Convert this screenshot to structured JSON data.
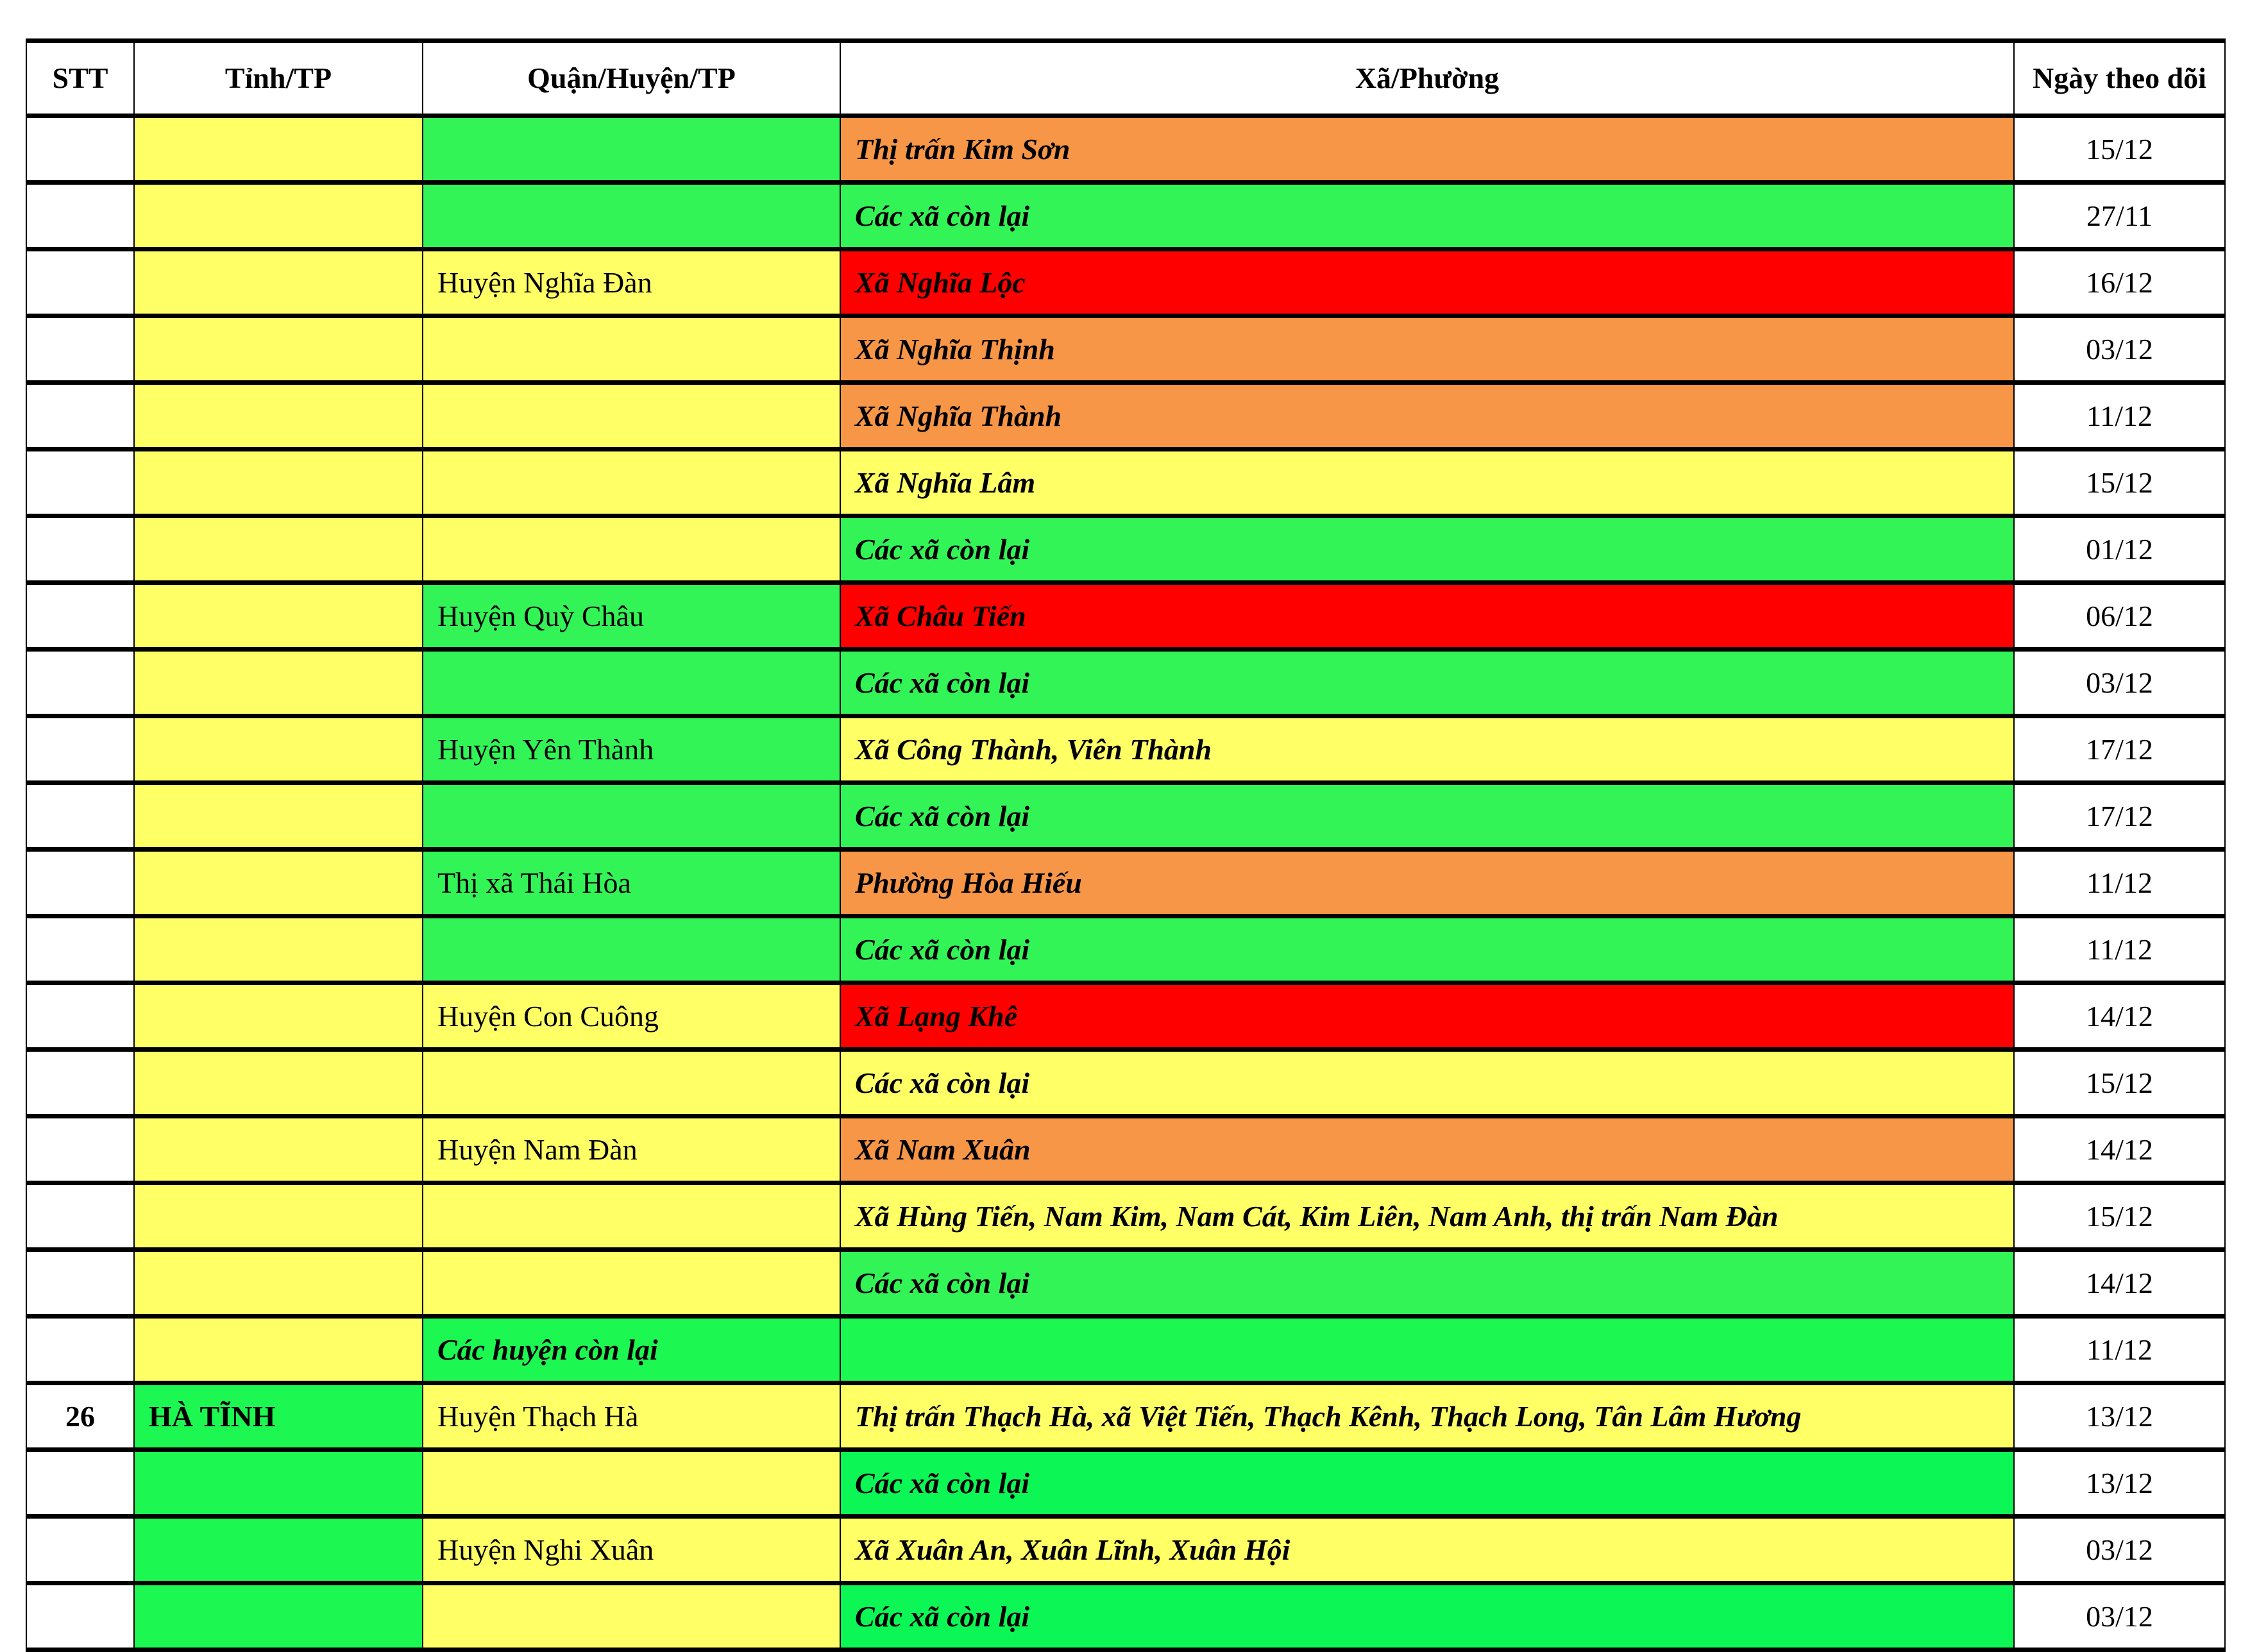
{
  "colors": {
    "yellow": "#FFFF66",
    "green": "#33F457",
    "green2": "#1CF752",
    "green3": "#0CF755",
    "orange": "#F79646",
    "red": "#FF0000",
    "white": "#FFFFFF"
  },
  "headers": {
    "stt": "STT",
    "tinh": "Tỉnh/TP",
    "quan": "Quận/Huyện/TP",
    "xa": "Xã/Phường",
    "ngay": "Ngày theo dõi"
  },
  "rows": [
    {
      "stt": "",
      "tinh": "",
      "tinh_color": "yellow",
      "quan": "",
      "quan_color": "green",
      "xa": "Thị trấn Kim Sơn",
      "xa_color": "orange",
      "ngay": "15/12"
    },
    {
      "stt": "",
      "tinh": "",
      "tinh_color": "yellow",
      "quan": "",
      "quan_color": "green",
      "xa": "Các xã còn lại",
      "xa_color": "green",
      "ngay": "27/11"
    },
    {
      "stt": "",
      "tinh": "",
      "tinh_color": "yellow",
      "quan": "Huyện Nghĩa Đàn",
      "quan_color": "yellow",
      "xa": "Xã Nghĩa Lộc",
      "xa_color": "red",
      "ngay": "16/12"
    },
    {
      "stt": "",
      "tinh": "",
      "tinh_color": "yellow",
      "quan": "",
      "quan_color": "yellow",
      "xa": "Xã Nghĩa Thịnh",
      "xa_color": "orange",
      "ngay": "03/12"
    },
    {
      "stt": "",
      "tinh": "",
      "tinh_color": "yellow",
      "quan": "",
      "quan_color": "yellow",
      "xa": "Xã Nghĩa Thành",
      "xa_color": "orange",
      "ngay": "11/12"
    },
    {
      "stt": "",
      "tinh": "",
      "tinh_color": "yellow",
      "quan": "",
      "quan_color": "yellow",
      "xa": "Xã Nghĩa Lâm",
      "xa_color": "yellow",
      "ngay": "15/12"
    },
    {
      "stt": "",
      "tinh": "",
      "tinh_color": "yellow",
      "quan": "",
      "quan_color": "yellow",
      "xa": "Các xã còn lại",
      "xa_color": "green",
      "ngay": "01/12"
    },
    {
      "stt": "",
      "tinh": "",
      "tinh_color": "yellow",
      "quan": "Huyện Quỳ Châu",
      "quan_color": "green",
      "xa": "Xã Châu Tiến",
      "xa_color": "red",
      "ngay": "06/12"
    },
    {
      "stt": "",
      "tinh": "",
      "tinh_color": "yellow",
      "quan": "",
      "quan_color": "green",
      "xa": "Các xã còn lại",
      "xa_color": "green",
      "ngay": "03/12"
    },
    {
      "stt": "",
      "tinh": "",
      "tinh_color": "yellow",
      "quan": "Huyện Yên Thành",
      "quan_color": "green",
      "xa": "Xã Công Thành, Viên Thành",
      "xa_color": "yellow",
      "ngay": "17/12"
    },
    {
      "stt": "",
      "tinh": "",
      "tinh_color": "yellow",
      "quan": "",
      "quan_color": "green",
      "xa": "Các xã còn lại",
      "xa_color": "green",
      "ngay": "17/12"
    },
    {
      "stt": "",
      "tinh": "",
      "tinh_color": "yellow",
      "quan": "Thị xã Thái Hòa",
      "quan_color": "green",
      "xa": "Phường Hòa Hiếu",
      "xa_color": "orange",
      "ngay": "11/12"
    },
    {
      "stt": "",
      "tinh": "",
      "tinh_color": "yellow",
      "quan": "",
      "quan_color": "green",
      "xa": "Các xã còn lại",
      "xa_color": "green",
      "ngay": "11/12"
    },
    {
      "stt": "",
      "tinh": "",
      "tinh_color": "yellow",
      "quan": "Huyện Con Cuông",
      "quan_color": "yellow",
      "xa": "Xã Lạng Khê",
      "xa_color": "red",
      "ngay": "14/12"
    },
    {
      "stt": "",
      "tinh": "",
      "tinh_color": "yellow",
      "quan": "",
      "quan_color": "yellow",
      "xa": "Các xã còn lại",
      "xa_color": "yellow",
      "ngay": "15/12"
    },
    {
      "stt": "",
      "tinh": "",
      "tinh_color": "yellow",
      "quan": "Huyện Nam Đàn",
      "quan_color": "yellow",
      "xa": "Xã Nam Xuân",
      "xa_color": "orange",
      "ngay": "14/12"
    },
    {
      "stt": "",
      "tinh": "",
      "tinh_color": "yellow",
      "quan": "",
      "quan_color": "yellow",
      "xa": "Xã Hùng Tiến, Nam Kim, Nam Cát, Kim Liên, Nam Anh, thị trấn Nam Đàn",
      "xa_color": "yellow",
      "ngay": "15/12"
    },
    {
      "stt": "",
      "tinh": "",
      "tinh_color": "yellow",
      "quan": "",
      "quan_color": "yellow",
      "xa": "Các xã còn lại",
      "xa_color": "green",
      "ngay": "14/12"
    },
    {
      "stt": "",
      "tinh": "",
      "tinh_color": "yellow",
      "quan": "Các huyện còn lại",
      "quan_color": "green2",
      "quan_style": "bold-italic",
      "xa": "",
      "xa_color": "green2",
      "ngay": "11/12"
    },
    {
      "stt": "26",
      "tinh": "HÀ TĨNH",
      "tinh_color": "green2",
      "quan": "Huyện Thạch Hà",
      "quan_color": "yellow",
      "xa": "Thị trấn Thạch Hà, xã Việt Tiến, Thạch Kênh, Thạch Long, Tân Lâm Hương",
      "xa_color": "yellow",
      "ngay": "13/12"
    },
    {
      "stt": "",
      "tinh": "",
      "tinh_color": "green2",
      "quan": "",
      "quan_color": "yellow",
      "xa": "Các xã còn lại",
      "xa_color": "green3",
      "ngay": "13/12"
    },
    {
      "stt": "",
      "tinh": "",
      "tinh_color": "green2",
      "quan": "Huyện Nghi Xuân",
      "quan_color": "yellow",
      "xa": "Xã Xuân An, Xuân Lĩnh, Xuân Hội",
      "xa_color": "yellow",
      "ngay": "03/12"
    },
    {
      "stt": "",
      "tinh": "",
      "tinh_color": "green2",
      "quan": "",
      "quan_color": "yellow",
      "xa": "Các xã còn lại",
      "xa_color": "green3",
      "ngay": "03/12"
    }
  ]
}
